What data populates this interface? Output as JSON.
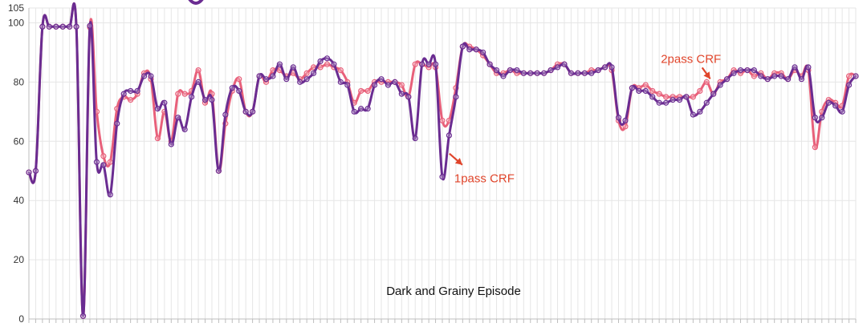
{
  "colors": {
    "onepass": "#6a2c91",
    "twopass": "#e8607a",
    "annotation": "#e0452b",
    "grid": "#e6e6e6",
    "axis": "#bdbdbd"
  },
  "chart_data": {
    "type": "line",
    "title": "",
    "xlabel": "",
    "ylabel": "",
    "ylim": [
      0,
      105
    ],
    "yticks": [
      0,
      20,
      40,
      60,
      80,
      100,
      105
    ],
    "xlim": [
      0,
      122
    ],
    "grid": true,
    "legend": "none",
    "caption": "Dark and Grainy Episode",
    "annotations": [
      {
        "text": "2pass CRF",
        "series": "twopass",
        "x": 101,
        "y": 80
      },
      {
        "text": "1pass CRF",
        "series": "onepass",
        "x": 63,
        "y": 58
      }
    ],
    "series": [
      {
        "key": "onepass",
        "color": "#6a2c91",
        "values": [
          49.5,
          50,
          98.7,
          98.7,
          98.7,
          98.7,
          98.7,
          98.7,
          1,
          99,
          53,
          52,
          42,
          66,
          76,
          77,
          77,
          82,
          82,
          71,
          73,
          59,
          68,
          64,
          75,
          80,
          74,
          74,
          50,
          69,
          78,
          77,
          70,
          70,
          82,
          81,
          82,
          86,
          81,
          85,
          80,
          81,
          83,
          87,
          88,
          86,
          80,
          79,
          70,
          71,
          71,
          79,
          81,
          79,
          80,
          76,
          75,
          61,
          86,
          86,
          86,
          48,
          62,
          75,
          92,
          91,
          91,
          90,
          86,
          84,
          82,
          84,
          84,
          83,
          83,
          83,
          83,
          84,
          85,
          86,
          83,
          83,
          83,
          83,
          84,
          85,
          85,
          68,
          67,
          78,
          77,
          77,
          75,
          73,
          73,
          74,
          74,
          75,
          69,
          70,
          73,
          76,
          79,
          81,
          83,
          84,
          84,
          84,
          82,
          81,
          82,
          82,
          81,
          85,
          81,
          85,
          68,
          68,
          73,
          72,
          70,
          79,
          82
        ]
      },
      {
        "key": "twopass",
        "color": "#e8607a",
        "values": [
          49.5,
          50,
          98.7,
          98.7,
          98.7,
          98.7,
          98.7,
          98.7,
          1,
          98.5,
          70,
          55,
          53,
          71,
          75,
          74,
          76,
          83,
          81,
          61,
          70,
          60,
          76,
          76,
          77,
          84,
          73,
          76,
          50,
          66,
          77,
          81,
          70,
          70,
          82,
          80,
          84,
          84,
          82,
          83,
          81,
          83,
          85,
          85,
          86,
          85,
          84,
          80,
          73,
          77,
          77,
          80,
          80,
          80,
          80,
          79,
          75,
          86,
          86,
          85,
          85,
          67,
          67,
          78,
          92,
          92,
          91,
          89,
          86,
          83,
          83,
          84,
          83,
          83,
          83,
          83,
          83,
          84,
          86,
          86,
          83,
          83,
          83,
          84,
          84,
          85,
          84,
          67,
          65,
          78,
          78,
          79,
          77,
          76,
          75,
          75,
          75,
          75,
          75,
          77,
          80,
          76,
          80,
          81,
          84,
          83,
          84,
          82,
          83,
          81,
          83,
          83,
          81,
          84,
          82,
          84,
          58,
          70,
          74,
          73,
          72,
          82,
          82
        ]
      }
    ]
  }
}
